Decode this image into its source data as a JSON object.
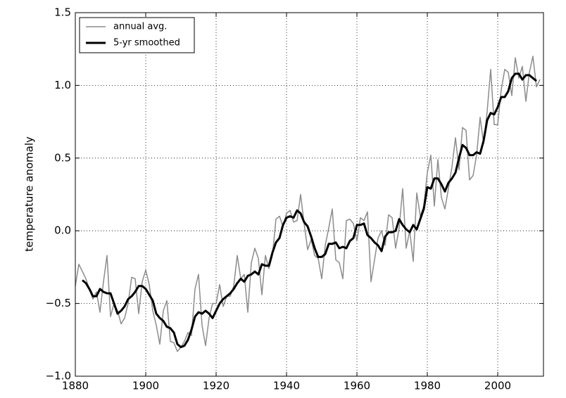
{
  "chart_data": {
    "type": "line",
    "ylabel": "temperature anomaly",
    "x": [
      1880,
      1881,
      1882,
      1883,
      1884,
      1885,
      1886,
      1887,
      1888,
      1889,
      1890,
      1891,
      1892,
      1893,
      1894,
      1895,
      1896,
      1897,
      1898,
      1899,
      1900,
      1901,
      1902,
      1903,
      1904,
      1905,
      1906,
      1907,
      1908,
      1909,
      1910,
      1911,
      1912,
      1913,
      1914,
      1915,
      1916,
      1917,
      1918,
      1919,
      1920,
      1921,
      1922,
      1923,
      1924,
      1925,
      1926,
      1927,
      1928,
      1929,
      1930,
      1931,
      1932,
      1933,
      1934,
      1935,
      1936,
      1937,
      1938,
      1939,
      1940,
      1941,
      1942,
      1943,
      1944,
      1945,
      1946,
      1947,
      1948,
      1949,
      1950,
      1951,
      1952,
      1953,
      1954,
      1955,
      1956,
      1957,
      1958,
      1959,
      1960,
      1961,
      1962,
      1963,
      1964,
      1965,
      1966,
      1967,
      1968,
      1969,
      1970,
      1971,
      1972,
      1973,
      1974,
      1975,
      1976,
      1977,
      1978,
      1979,
      1980,
      1981,
      1982,
      1983,
      1984,
      1985,
      1986,
      1987,
      1988,
      1989,
      1990,
      1991,
      1992,
      1993,
      1994,
      1995,
      1996,
      1997,
      1998,
      1999,
      2000,
      2001,
      2002,
      2003,
      2004,
      2005,
      2006,
      2007,
      2008,
      2009,
      2010,
      2011,
      2012
    ],
    "series": [
      {
        "name": "annual avg.",
        "color": "#8c8c8c",
        "values": [
          -0.38,
          -0.23,
          -0.28,
          -0.33,
          -0.4,
          -0.47,
          -0.42,
          -0.56,
          -0.35,
          -0.17,
          -0.59,
          -0.5,
          -0.55,
          -0.64,
          -0.6,
          -0.5,
          -0.32,
          -0.33,
          -0.57,
          -0.35,
          -0.27,
          -0.37,
          -0.55,
          -0.65,
          -0.78,
          -0.55,
          -0.48,
          -0.76,
          -0.77,
          -0.83,
          -0.8,
          -0.76,
          -0.7,
          -0.72,
          -0.4,
          -0.3,
          -0.65,
          -0.79,
          -0.6,
          -0.5,
          -0.5,
          -0.37,
          -0.52,
          -0.45,
          -0.45,
          -0.38,
          -0.17,
          -0.33,
          -0.3,
          -0.56,
          -0.22,
          -0.12,
          -0.19,
          -0.44,
          -0.17,
          -0.26,
          -0.17,
          0.08,
          0.1,
          0.03,
          0.12,
          0.14,
          0.06,
          0.07,
          0.25,
          0.05,
          -0.13,
          -0.06,
          -0.17,
          -0.19,
          -0.33,
          -0.1,
          0.02,
          0.15,
          -0.2,
          -0.22,
          -0.33,
          0.07,
          0.08,
          0.05,
          -0.07,
          0.09,
          0.07,
          0.13,
          -0.35,
          -0.2,
          -0.05,
          0.0,
          -0.1,
          0.11,
          0.09,
          -0.12,
          0.02,
          0.29,
          -0.12,
          0.0,
          -0.21,
          0.26,
          0.1,
          0.17,
          0.4,
          0.52,
          0.17,
          0.49,
          0.23,
          0.15,
          0.29,
          0.44,
          0.64,
          0.42,
          0.71,
          0.69,
          0.35,
          0.38,
          0.52,
          0.78,
          0.6,
          0.82,
          1.11,
          0.73,
          0.73,
          0.97,
          1.11,
          1.09,
          0.93,
          1.19,
          1.05,
          1.13,
          0.89,
          1.09,
          1.2,
          0.99,
          1.04
        ],
        "width": 1.5
      },
      {
        "name": "5-yr smoothed",
        "color": "#000000",
        "values": [
          null,
          null,
          -0.34,
          -0.36,
          -0.4,
          -0.45,
          -0.45,
          -0.4,
          -0.42,
          -0.43,
          -0.43,
          -0.5,
          -0.57,
          -0.55,
          -0.52,
          -0.47,
          -0.45,
          -0.42,
          -0.38,
          -0.38,
          -0.4,
          -0.44,
          -0.48,
          -0.57,
          -0.6,
          -0.62,
          -0.66,
          -0.67,
          -0.7,
          -0.78,
          -0.8,
          -0.79,
          -0.75,
          -0.68,
          -0.59,
          -0.56,
          -0.57,
          -0.55,
          -0.57,
          -0.6,
          -0.55,
          -0.5,
          -0.47,
          -0.45,
          -0.43,
          -0.4,
          -0.36,
          -0.33,
          -0.35,
          -0.31,
          -0.3,
          -0.28,
          -0.3,
          -0.23,
          -0.24,
          -0.24,
          -0.15,
          -0.08,
          -0.05,
          0.04,
          0.09,
          0.1,
          0.09,
          0.14,
          0.12,
          0.06,
          0.03,
          -0.04,
          -0.12,
          -0.18,
          -0.18,
          -0.16,
          -0.09,
          -0.09,
          -0.08,
          -0.12,
          -0.11,
          -0.12,
          -0.07,
          -0.05,
          0.04,
          0.04,
          0.05,
          -0.03,
          -0.05,
          -0.08,
          -0.1,
          -0.14,
          -0.04,
          -0.01,
          -0.01,
          0.0,
          0.08,
          0.04,
          0.01,
          -0.01,
          0.04,
          0.01,
          0.08,
          0.15,
          0.3,
          0.29,
          0.36,
          0.36,
          0.32,
          0.27,
          0.33,
          0.36,
          0.4,
          0.5,
          0.59,
          0.57,
          0.52,
          0.52,
          0.54,
          0.53,
          0.62,
          0.76,
          0.81,
          0.8,
          0.85,
          0.92,
          0.92,
          0.96,
          1.05,
          1.08,
          1.08,
          1.04,
          1.07,
          1.07,
          1.05,
          1.03,
          null
        ],
        "width": 3
      }
    ],
    "xlim": [
      1880,
      2013
    ],
    "xticks": [
      1880,
      1900,
      1920,
      1940,
      1960,
      1980,
      2000
    ],
    "ylim": [
      -1.0,
      1.5
    ],
    "yticks": [
      {
        "value": -1.0,
        "label": "−1.0"
      },
      {
        "value": -0.5,
        "label": "−0.5"
      },
      {
        "value": 0.0,
        "label": "0.0"
      },
      0.5,
      {
        "value": 1.0,
        "label": "1.0"
      },
      1.5
    ],
    "grid": true,
    "legend": "upper left"
  }
}
